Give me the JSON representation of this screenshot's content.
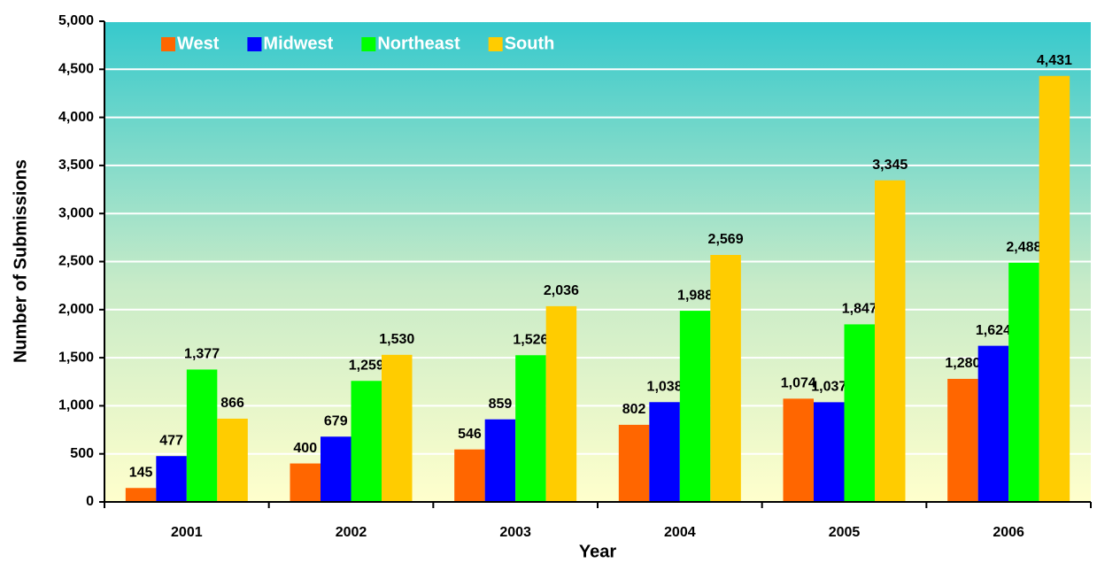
{
  "chart_data": {
    "type": "bar",
    "y_label": "Number of Submissions",
    "x_label": "Year",
    "categories": [
      "2001",
      "2002",
      "2003",
      "2004",
      "2005",
      "2006"
    ],
    "series": [
      {
        "name": "West",
        "color": "#ff6600",
        "values": [
          145,
          400,
          546,
          802,
          1074,
          1280
        ],
        "value_labels": [
          "145",
          "400",
          "546",
          "802",
          "1,074",
          "1,280"
        ]
      },
      {
        "name": "Midwest",
        "color": "#0000ff",
        "values": [
          477,
          679,
          859,
          1038,
          1037,
          1624
        ],
        "value_labels": [
          "477",
          "679",
          "859",
          "1,038",
          "1,037",
          "1,624"
        ]
      },
      {
        "name": "Northeast",
        "color": "#00ff00",
        "values": [
          1377,
          1259,
          1526,
          1988,
          1847,
          2488
        ],
        "value_labels": [
          "1,377",
          "1,259",
          "1,526",
          "1,988",
          "1,847",
          "2,488"
        ]
      },
      {
        "name": "South",
        "color": "#ffcc00",
        "values": [
          866,
          1530,
          2036,
          2569,
          3345,
          4431
        ],
        "value_labels": [
          "866",
          "1,530",
          "2,036",
          "2,569",
          "3,345",
          "4,431"
        ]
      }
    ],
    "ylim": [
      0,
      5000
    ],
    "yticks": [
      0,
      500,
      {
        "value": 1000,
        "label": "1,000"
      },
      {
        "value": 1500,
        "label": "1,500"
      },
      {
        "value": 2000,
        "label": "2,000"
      },
      {
        "value": 2500,
        "label": "2,500"
      },
      {
        "value": 3000,
        "label": "3,000"
      },
      {
        "value": 3500,
        "label": "3,500"
      },
      {
        "value": 4000,
        "label": "4,000"
      },
      {
        "value": 4500,
        "label": "4,500"
      },
      {
        "value": 5000,
        "label": "5,000"
      }
    ],
    "grid": true,
    "legend": "top-left"
  }
}
